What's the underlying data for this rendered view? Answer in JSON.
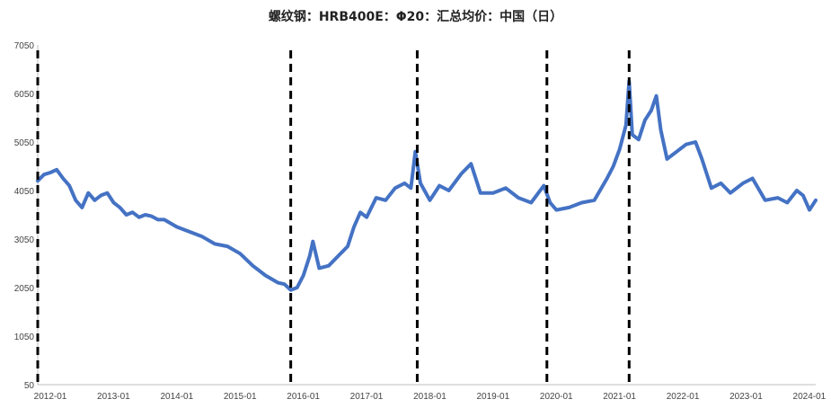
{
  "chart_data": {
    "type": "line",
    "title": "螺纹钢：HRB400E：Φ20：汇总均价：中国（日）",
    "xlabel": "",
    "ylabel": "",
    "ylim": [
      50,
      7050
    ],
    "y_ticks": [
      "7050",
      "6050",
      "5050",
      "4050",
      "3050",
      "2050",
      "1050",
      "50"
    ],
    "x_ticks": [
      "2012-01",
      "2013-01",
      "2014-01",
      "2015-01",
      "2016-01",
      "2017-01",
      "2018-01",
      "2019-01",
      "2020-01",
      "2021-01",
      "2022-01",
      "2023-01",
      "2024-01"
    ],
    "xlim": [
      2012.0,
      2024.3
    ],
    "grid": false,
    "line_color": "#4472C4",
    "marker_line_color": "#000000",
    "vertical_markers": [
      2012.0,
      2016.0,
      2018.0,
      2020.05,
      2021.35
    ],
    "series": [
      {
        "x": [
          2012.0,
          2012.1,
          2012.2,
          2012.3,
          2012.4,
          2012.5,
          2012.6,
          2012.7,
          2012.8,
          2012.9,
          2013.0,
          2013.1,
          2013.2,
          2013.3,
          2013.4,
          2013.5,
          2013.6,
          2013.7,
          2013.8,
          2013.9,
          2014.0,
          2014.2,
          2014.4,
          2014.6,
          2014.8,
          2015.0,
          2015.2,
          2015.4,
          2015.6,
          2015.8,
          2015.9,
          2016.0,
          2016.1,
          2016.2,
          2016.3,
          2016.35,
          2016.45,
          2016.6,
          2016.75,
          2016.9,
          2017.0,
          2017.1,
          2017.2,
          2017.35,
          2017.5,
          2017.65,
          2017.8,
          2017.9,
          2017.97,
          2018.05,
          2018.2,
          2018.35,
          2018.5,
          2018.7,
          2018.85,
          2019.0,
          2019.2,
          2019.4,
          2019.6,
          2019.8,
          2020.0,
          2020.1,
          2020.2,
          2020.4,
          2020.6,
          2020.8,
          2021.0,
          2021.1,
          2021.2,
          2021.3,
          2021.35,
          2021.4,
          2021.5,
          2021.6,
          2021.7,
          2021.78,
          2021.85,
          2021.95,
          2022.1,
          2022.25,
          2022.4,
          2022.5,
          2022.65,
          2022.8,
          2022.95,
          2023.0,
          2023.15,
          2023.3,
          2023.5,
          2023.7,
          2023.85,
          2024.0,
          2024.1,
          2024.2,
          2024.3
        ],
        "values": [
          4250,
          4380,
          4420,
          4480,
          4300,
          4150,
          3850,
          3700,
          4000,
          3850,
          3950,
          4000,
          3800,
          3700,
          3550,
          3600,
          3500,
          3550,
          3520,
          3450,
          3450,
          3300,
          3200,
          3100,
          2950,
          2900,
          2750,
          2500,
          2300,
          2150,
          2120,
          2000,
          2050,
          2300,
          2700,
          3000,
          2450,
          2500,
          2700,
          2900,
          3300,
          3600,
          3500,
          3900,
          3850,
          4100,
          4200,
          4100,
          4850,
          4200,
          3850,
          4150,
          4050,
          4400,
          4600,
          4000,
          4000,
          4100,
          3900,
          3800,
          4150,
          3800,
          3650,
          3700,
          3800,
          3850,
          4300,
          4550,
          4900,
          5400,
          6300,
          5200,
          5100,
          5500,
          5700,
          6000,
          5300,
          4700,
          4850,
          5000,
          5050,
          4700,
          4100,
          4200,
          4000,
          4050,
          4200,
          4300,
          3850,
          3900,
          3800,
          4050,
          3950,
          3650,
          3850
        ]
      }
    ]
  }
}
